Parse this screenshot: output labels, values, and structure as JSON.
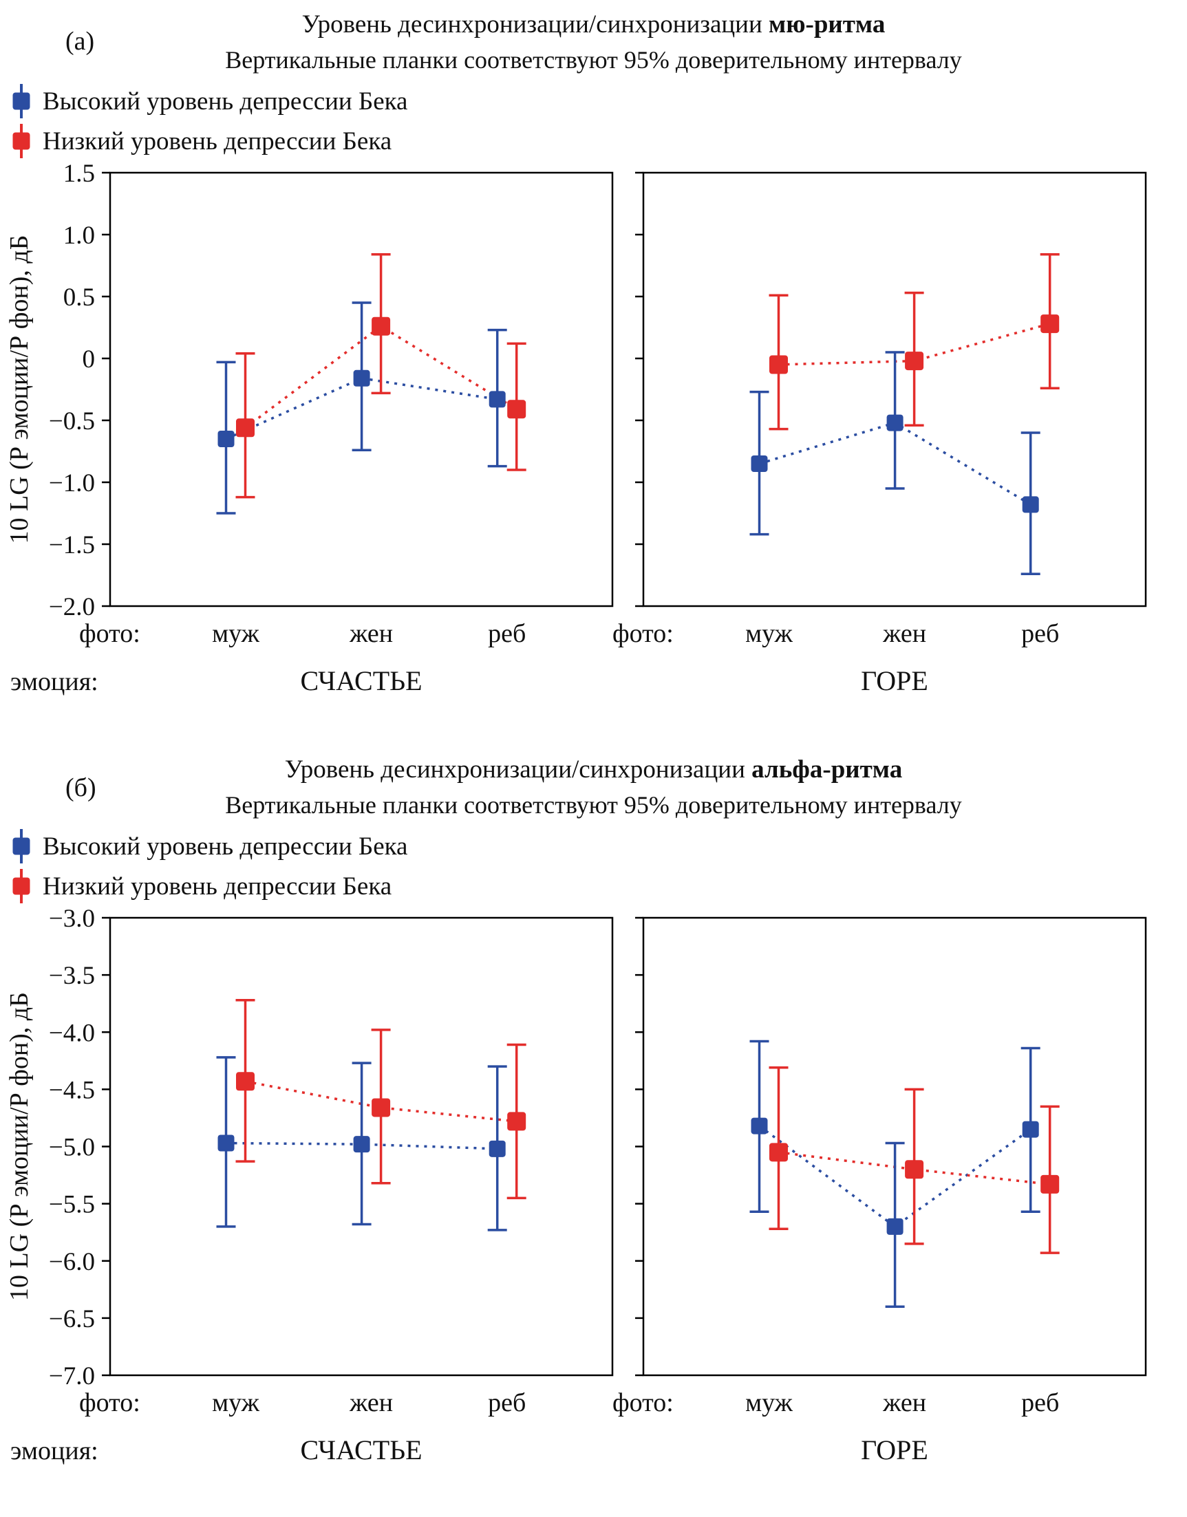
{
  "chart_data": [
    {
      "type": "scatter",
      "panel_label": "(а)",
      "title": "Уровень десинхронизации/синхронизации",
      "title_bold": "мю-ритма",
      "subtitle": "Вертикальные планки соответствуют 95% доверительному интервалу",
      "legend": [
        {
          "label": "Высокий уровень депрессии Бека",
          "color": "#2B4DA1"
        },
        {
          "label": "Низкий уровень депрессии Бека",
          "color": "#E32D2B"
        }
      ],
      "ylabel": "10 LG (Р эмоции/Р фон), дБ",
      "ylim": [
        -2.0,
        1.5
      ],
      "ytick_values": [
        1.5,
        1.0,
        0.5,
        0,
        -0.5,
        -1.0,
        -1.5,
        -2.0
      ],
      "ytick_labels": [
        "1.5",
        "1.0",
        "0.5",
        "0",
        "−0.5",
        "−1.0",
        "−1.5",
        "−2.0"
      ],
      "x_axis_prefix": "фото:",
      "emotion_axis_prefix": "эмоция:",
      "categories": [
        "муж",
        "жен",
        "реб"
      ],
      "subplots": [
        {
          "emotion": "СЧАСТЬЕ",
          "series": [
            {
              "name": "Высокий уровень депрессии Бека",
              "color": "#2B4DA1",
              "marker": "square",
              "means": [
                -0.65,
                -0.16,
                -0.33
              ],
              "ci_low": [
                -1.25,
                -0.74,
                -0.87
              ],
              "ci_high": [
                -0.03,
                0.45,
                0.23
              ]
            },
            {
              "name": "Низкий уровень депрессии Бека",
              "color": "#E32D2B",
              "marker": "square",
              "means": [
                -0.56,
                0.26,
                -0.41
              ],
              "ci_low": [
                -1.12,
                -0.28,
                -0.9
              ],
              "ci_high": [
                0.04,
                0.84,
                0.12
              ]
            }
          ]
        },
        {
          "emotion": "ГОРЕ",
          "series": [
            {
              "name": "Высокий уровень депрессии Бека",
              "color": "#2B4DA1",
              "marker": "square",
              "means": [
                -0.85,
                -0.52,
                -1.18
              ],
              "ci_low": [
                -1.42,
                -1.05,
                -1.74
              ],
              "ci_high": [
                -0.27,
                0.05,
                -0.6
              ]
            },
            {
              "name": "Низкий уровень депрессии Бека",
              "color": "#E32D2B",
              "marker": "square",
              "means": [
                -0.05,
                -0.02,
                0.28
              ],
              "ci_low": [
                -0.57,
                -0.54,
                -0.24
              ],
              "ci_high": [
                0.51,
                0.53,
                0.84
              ]
            }
          ]
        }
      ]
    },
    {
      "type": "scatter",
      "panel_label": "(б)",
      "title": "Уровень десинхронизации/синхронизации",
      "title_bold": "альфа-ритма",
      "subtitle": "Вертикальные планки соответствуют 95% доверительному интервалу",
      "legend": [
        {
          "label": "Высокий уровень депрессии Бека",
          "color": "#2B4DA1"
        },
        {
          "label": "Низкий уровень депрессии Бека",
          "color": "#E32D2B"
        }
      ],
      "ylabel": "10 LG (Р эмоции/Р фон), дБ",
      "ylim": [
        -7.0,
        -3.0
      ],
      "ytick_values": [
        -3.0,
        -3.5,
        -4.0,
        -4.5,
        -5.0,
        -5.5,
        -6.0,
        -6.5,
        -7.0
      ],
      "ytick_labels": [
        "−3.0",
        "−3.5",
        "−4.0",
        "−4.5",
        "−5.0",
        "−5.5",
        "−6.0",
        "−6.5",
        "−7.0"
      ],
      "x_axis_prefix": "фото:",
      "emotion_axis_prefix": "эмоция:",
      "categories": [
        "муж",
        "жен",
        "реб"
      ],
      "subplots": [
        {
          "emotion": "СЧАСТЬЕ",
          "series": [
            {
              "name": "Высокий уровень депрессии Бека",
              "color": "#2B4DA1",
              "marker": "square",
              "means": [
                -4.97,
                -4.98,
                -5.02
              ],
              "ci_low": [
                -5.7,
                -5.68,
                -5.73
              ],
              "ci_high": [
                -4.22,
                -4.27,
                -4.3
              ]
            },
            {
              "name": "Низкий уровень депрессии Бека",
              "color": "#E32D2B",
              "marker": "square",
              "means": [
                -4.43,
                -4.66,
                -4.78
              ],
              "ci_low": [
                -5.13,
                -5.32,
                -5.45
              ],
              "ci_high": [
                -3.72,
                -3.98,
                -4.11
              ]
            }
          ]
        },
        {
          "emotion": "ГОРЕ",
          "series": [
            {
              "name": "Высокий уровень депрессии Бека",
              "color": "#2B4DA1",
              "marker": "square",
              "means": [
                -4.82,
                -5.7,
                -4.85
              ],
              "ci_low": [
                -5.57,
                -6.4,
                -5.57
              ],
              "ci_high": [
                -4.08,
                -4.97,
                -4.14
              ]
            },
            {
              "name": "Низкий уровень депрессии Бека",
              "color": "#E32D2B",
              "marker": "square",
              "means": [
                -5.05,
                -5.2,
                -5.33
              ],
              "ci_low": [
                -5.72,
                -5.85,
                -5.93
              ],
              "ci_high": [
                -4.31,
                -4.5,
                -4.65
              ]
            }
          ]
        }
      ]
    }
  ]
}
